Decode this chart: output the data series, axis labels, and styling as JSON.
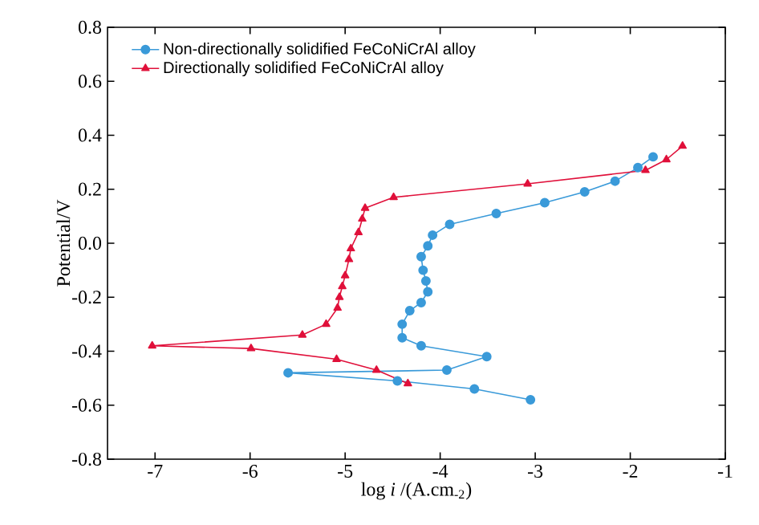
{
  "chart_data": {
    "type": "line",
    "xlabel": "log *i* /(A.cm$_{-2}$)",
    "ylabel": "Potential/V",
    "xlim": [
      -7.5,
      -1
    ],
    "xticks": [
      -7,
      -6,
      -5,
      -4,
      -3,
      -2,
      -1
    ],
    "ylim": [
      -0.8,
      0.8
    ],
    "yticks": [
      -0.8,
      -0.6,
      -0.4,
      -0.2,
      {
        "value": 0,
        "label": "0.0"
      },
      0.2,
      0.4,
      0.6,
      0.8
    ],
    "grid": false,
    "legend": "top left",
    "series": [
      {
        "name": "Non-directionally solidified FeCoNiCrAl alloy",
        "color": "#3a9ad9",
        "marker": "circle",
        "x": [
          -3.05,
          -3.64,
          -4.45,
          -5.6,
          -3.93,
          -3.51,
          -4.2,
          -4.4,
          -4.4,
          -4.32,
          -4.2,
          -4.13,
          -4.15,
          -4.18,
          -4.2,
          -4.13,
          -4.08,
          -3.9,
          -3.41,
          -2.9,
          -2.48,
          -2.16,
          -1.92,
          -1.76
        ],
        "values": [
          -0.58,
          -0.54,
          -0.51,
          -0.48,
          -0.47,
          -0.42,
          -0.38,
          -0.35,
          -0.3,
          -0.25,
          -0.22,
          -0.18,
          -0.14,
          -0.1,
          -0.05,
          -0.01,
          0.03,
          0.07,
          0.11,
          0.15,
          0.19,
          0.23,
          0.28,
          0.32
        ]
      },
      {
        "name": "Directionally solidified FeCoNiCrAl alloy",
        "color": "#e0103a",
        "marker": "triangle",
        "x": [
          -4.34,
          -4.67,
          -5.09,
          -5.99,
          -7.03,
          -5.45,
          -5.2,
          -5.08,
          -5.06,
          -5.03,
          -5.0,
          -4.96,
          -4.94,
          -4.86,
          -4.82,
          -4.79,
          -4.49,
          -3.08,
          -1.84,
          -1.62,
          -1.45
        ],
        "values": [
          -0.52,
          -0.47,
          -0.43,
          -0.39,
          -0.38,
          -0.34,
          -0.3,
          -0.24,
          -0.2,
          -0.16,
          -0.12,
          -0.06,
          -0.02,
          0.04,
          0.09,
          0.13,
          0.17,
          0.22,
          0.27,
          0.31,
          0.36
        ]
      }
    ]
  }
}
